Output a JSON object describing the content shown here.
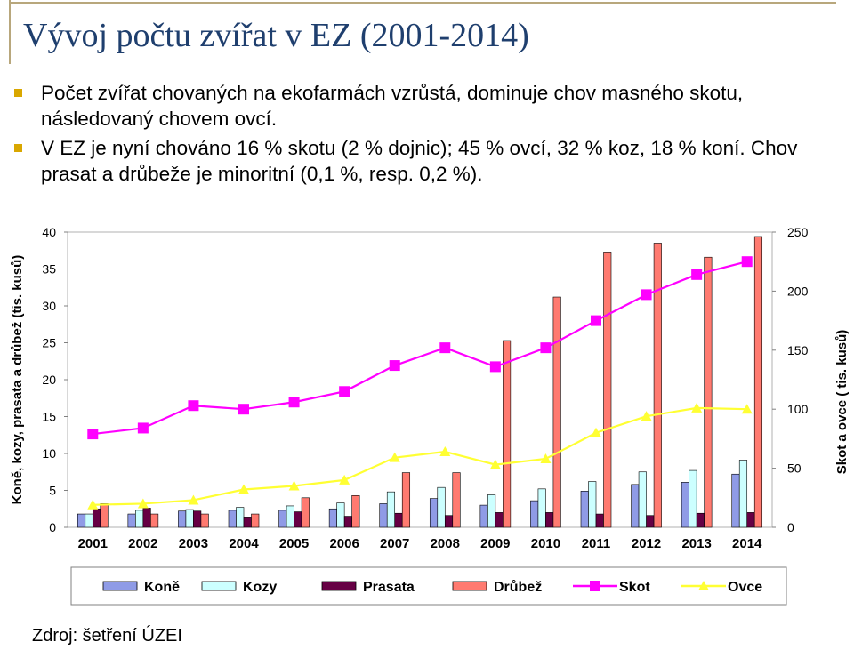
{
  "slide": {
    "title": "Vývoj počtu zvířat v EZ (2001-2014)",
    "bullets": [
      "Počet zvířat chovaných na ekofarmách vzrůstá, dominuje chov masného skotu, následovaný chovem ovcí.",
      "V EZ je nyní chováno 16 % skotu (2 % dojnic); 45 % ovcí, 32 % koz, 18 % koní. Chov prasat a drůbeže je minoritní (0,1 %, resp. 0,2 %)."
    ],
    "source": "Zdroj: šetření ÚZEI"
  },
  "colors": {
    "title": "#1f3f6e",
    "bullet": "#d9a700",
    "kone": "#8f9be6",
    "kozy": "#ccffff",
    "prasata": "#660044",
    "drubez": "#ff7a70",
    "skot": "#ff00ff",
    "ovce": "#ffff33"
  },
  "chart_data": {
    "type": "bar",
    "categories": [
      "2001",
      "2002",
      "2003",
      "2004",
      "2005",
      "2006",
      "2007",
      "2008",
      "2009",
      "2010",
      "2011",
      "2012",
      "2013",
      "2014"
    ],
    "ylabel": "Koně, kozy, prasata a drůbež (tis. kusů)",
    "y2label": "Skot a ovce ( tis. kusů)",
    "ylim": [
      0,
      40
    ],
    "y2lim": [
      0,
      250
    ],
    "yticks": [
      0,
      5,
      10,
      15,
      20,
      25,
      30,
      35,
      40
    ],
    "y2ticks": [
      0,
      50,
      100,
      150,
      200,
      250
    ],
    "grid": false,
    "legend_position": "bottom",
    "series": [
      {
        "name": "Koně",
        "kind": "bar",
        "axis": "left",
        "color": "#8f9be6",
        "values": [
          1.8,
          1.8,
          2.2,
          2.3,
          2.3,
          2.5,
          3.2,
          3.9,
          3.0,
          3.6,
          4.9,
          5.8,
          6.1,
          7.2
        ]
      },
      {
        "name": "Kozy",
        "kind": "bar",
        "axis": "left",
        "color": "#ccffff",
        "values": [
          1.8,
          2.3,
          2.4,
          2.7,
          2.9,
          3.3,
          4.8,
          5.4,
          4.4,
          5.2,
          6.2,
          7.5,
          7.7,
          9.1
        ]
      },
      {
        "name": "Prasata",
        "kind": "bar",
        "axis": "left",
        "color": "#660044",
        "values": [
          2.5,
          2.6,
          2.2,
          1.4,
          2.1,
          1.5,
          1.9,
          1.6,
          2.0,
          2.0,
          1.8,
          1.6,
          1.9,
          2.0
        ]
      },
      {
        "name": "Drůbež",
        "kind": "bar",
        "axis": "left",
        "color": "#ff7a70",
        "values": [
          3.2,
          1.8,
          1.8,
          1.8,
          4.0,
          4.3,
          7.4,
          7.4,
          25.3,
          31.2,
          37.3,
          38.5,
          36.6,
          39.4
        ]
      },
      {
        "name": "Skot",
        "kind": "line",
        "marker": "square",
        "axis": "right",
        "color": "#ff00ff",
        "values": [
          79,
          84,
          103,
          100,
          106,
          115,
          137,
          152,
          136,
          152,
          175,
          197,
          214,
          225
        ]
      },
      {
        "name": "Ovce",
        "kind": "line",
        "marker": "triangle",
        "axis": "right",
        "color": "#ffff33",
        "values": [
          19,
          20,
          23,
          32,
          35,
          40,
          59,
          64,
          53,
          58,
          80,
          94,
          101,
          100
        ]
      }
    ]
  }
}
